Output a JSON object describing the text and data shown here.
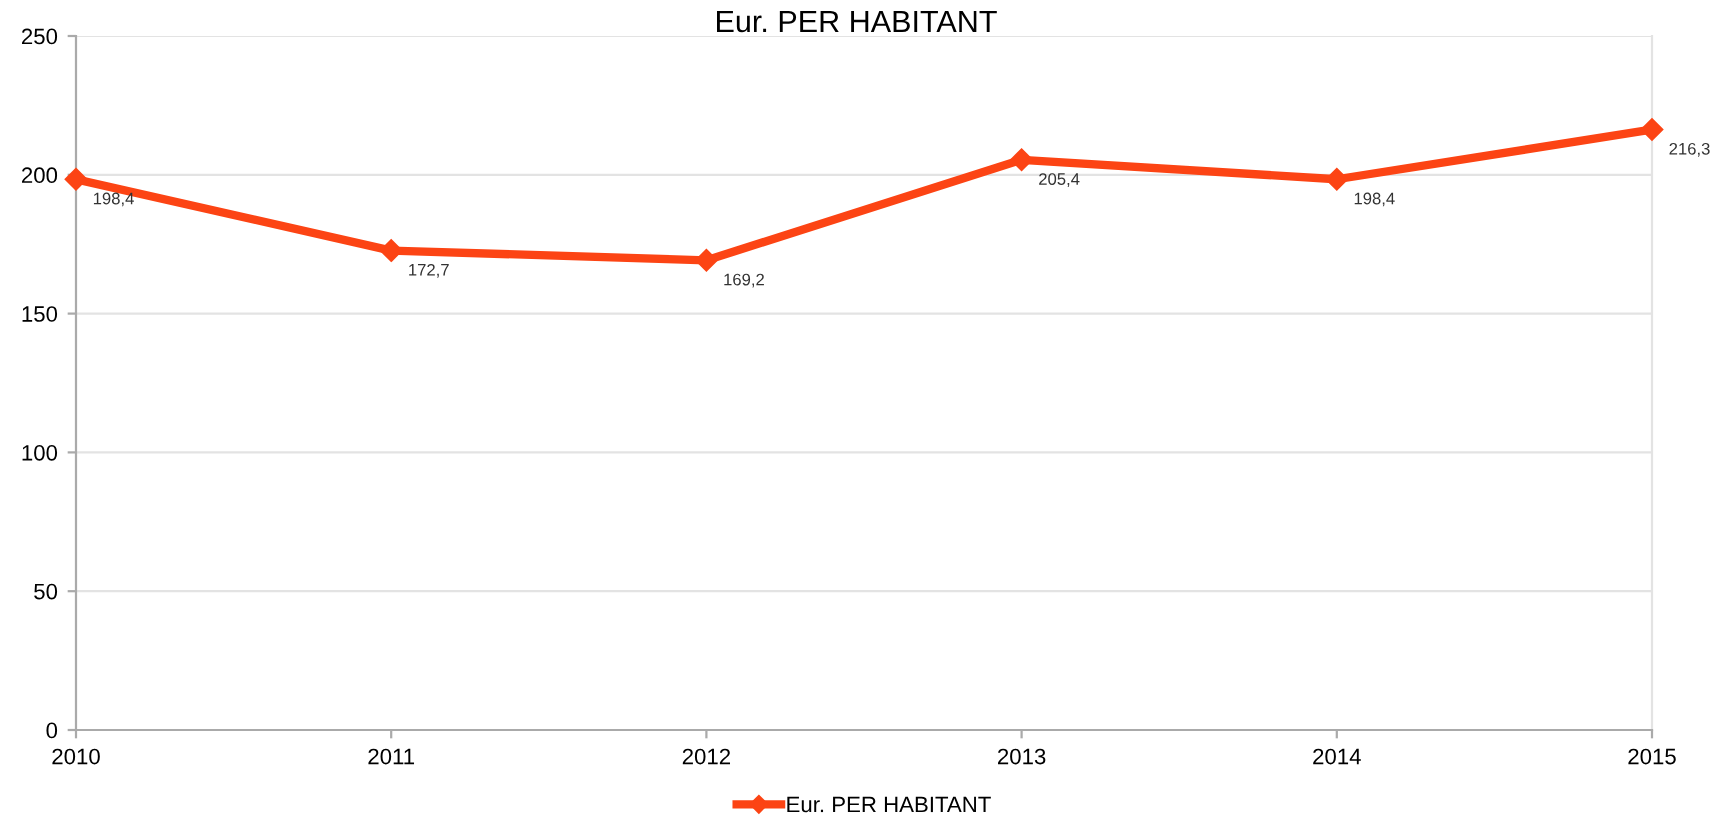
{
  "chart_data": {
    "type": "line",
    "title": "Eur. PER HABITANT",
    "x": [
      2010,
      2011,
      2012,
      2013,
      2014,
      2015
    ],
    "series": [
      {
        "name": "Eur. PER HABITANT",
        "color": "#fc4414",
        "values": [
          198.4,
          172.7,
          169.2,
          205.4,
          198.4,
          216.3
        ],
        "value_labels": [
          "198,4",
          "172,7",
          "169,2",
          "205,4",
          "198,4",
          "216,3"
        ]
      }
    ],
    "xlim": [
      2010,
      2015
    ],
    "xticks": [
      2010,
      2011,
      2012,
      2013,
      2014,
      2015
    ],
    "ylim": [
      0,
      250
    ],
    "yticks": [
      0,
      50,
      100,
      150,
      200,
      250
    ],
    "grid": "y",
    "legend": "bottom",
    "marker": "diamond",
    "line_style": "solid"
  }
}
